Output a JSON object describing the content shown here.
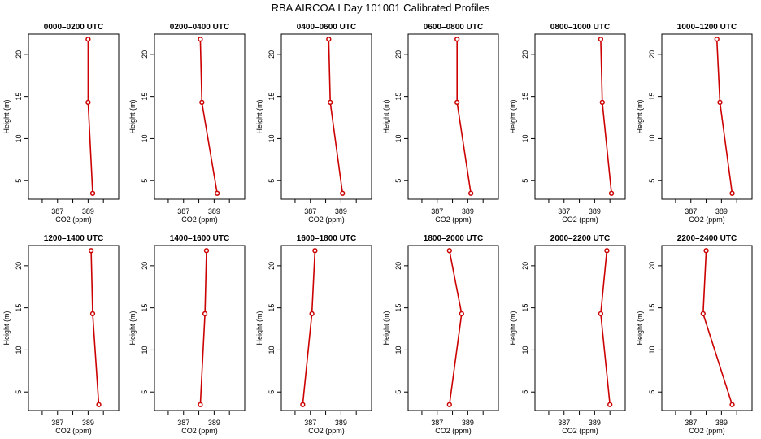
{
  "title": "RBA AIRCOA I  Day 101001  Calibrated Profiles",
  "chart_data": [
    {
      "type": "line",
      "title": "0000–0200 UTC",
      "xlabel": "CO2 (ppm)",
      "ylabel": "Height (m)",
      "xticks": [
        "387",
        "389"
      ],
      "yticks": [
        "5",
        "10",
        "15",
        "20"
      ],
      "x": [
        389.3,
        389.0,
        389.0
      ],
      "y": [
        3.5,
        14.3,
        21.8
      ]
    },
    {
      "type": "line",
      "title": "0200–0400 UTC",
      "xlabel": "CO2 (ppm)",
      "ylabel": "Height (m)",
      "xticks": [
        "387",
        "389"
      ],
      "yticks": [
        "5",
        "10",
        "15",
        "20"
      ],
      "x": [
        389.2,
        388.2,
        388.1
      ],
      "y": [
        3.5,
        14.3,
        21.8
      ]
    },
    {
      "type": "line",
      "title": "0400–0600 UTC",
      "xlabel": "CO2 (ppm)",
      "ylabel": "Height (m)",
      "xticks": [
        "387",
        "389"
      ],
      "yticks": [
        "5",
        "10",
        "15",
        "20"
      ],
      "x": [
        389.1,
        388.3,
        388.2
      ],
      "y": [
        3.5,
        14.3,
        21.8
      ]
    },
    {
      "type": "line",
      "title": "0600–0800 UTC",
      "xlabel": "CO2 (ppm)",
      "ylabel": "Height (m)",
      "xticks": [
        "387",
        "389"
      ],
      "yticks": [
        "5",
        "10",
        "15",
        "20"
      ],
      "x": [
        389.2,
        388.3,
        388.3
      ],
      "y": [
        3.5,
        14.3,
        21.8
      ]
    },
    {
      "type": "line",
      "title": "0800–1000 UTC",
      "xlabel": "CO2 (ppm)",
      "ylabel": "Height (m)",
      "xticks": [
        "387",
        "389"
      ],
      "yticks": [
        "5",
        "10",
        "15",
        "20"
      ],
      "x": [
        390.1,
        389.5,
        389.4
      ],
      "y": [
        3.5,
        14.3,
        21.8
      ]
    },
    {
      "type": "line",
      "title": "1000–1200 UTC",
      "xlabel": "CO2 (ppm)",
      "ylabel": "Height (m)",
      "xticks": [
        "387",
        "389"
      ],
      "yticks": [
        "5",
        "10",
        "15",
        "20"
      ],
      "x": [
        389.7,
        388.9,
        388.7
      ],
      "y": [
        3.5,
        14.3,
        21.8
      ]
    },
    {
      "type": "line",
      "title": "1200–1400 UTC",
      "xlabel": "CO2 (ppm)",
      "ylabel": "Height (m)",
      "xticks": [
        "387",
        "389"
      ],
      "yticks": [
        "5",
        "10",
        "15",
        "20"
      ],
      "x": [
        389.7,
        389.3,
        389.2
      ],
      "y": [
        3.5,
        14.3,
        21.8
      ]
    },
    {
      "type": "line",
      "title": "1400–1600 UTC",
      "xlabel": "CO2 (ppm)",
      "ylabel": "Height (m)",
      "xticks": [
        "387",
        "389"
      ],
      "yticks": [
        "5",
        "10",
        "15",
        "20"
      ],
      "x": [
        388.1,
        388.4,
        388.5
      ],
      "y": [
        3.5,
        14.3,
        21.8
      ]
    },
    {
      "type": "line",
      "title": "1600–1800 UTC",
      "xlabel": "CO2 (ppm)",
      "ylabel": "Height (m)",
      "xticks": [
        "387",
        "389"
      ],
      "yticks": [
        "5",
        "10",
        "15",
        "20"
      ],
      "x": [
        386.5,
        387.1,
        387.3
      ],
      "y": [
        3.5,
        14.3,
        21.8
      ]
    },
    {
      "type": "line",
      "title": "1800–2000 UTC",
      "xlabel": "CO2 (ppm)",
      "ylabel": "Height (m)",
      "xticks": [
        "387",
        "389"
      ],
      "yticks": [
        "5",
        "10",
        "15",
        "20"
      ],
      "x": [
        387.8,
        388.6,
        387.8
      ],
      "y": [
        3.5,
        14.3,
        21.8
      ]
    },
    {
      "type": "line",
      "title": "2000–2200 UTC",
      "xlabel": "CO2 (ppm)",
      "ylabel": "Height (m)",
      "xticks": [
        "387",
        "389"
      ],
      "yticks": [
        "5",
        "10",
        "15",
        "20"
      ],
      "x": [
        390.0,
        389.4,
        389.8
      ],
      "y": [
        3.5,
        14.3,
        21.8
      ]
    },
    {
      "type": "line",
      "title": "2200–2400 UTC",
      "xlabel": "CO2 (ppm)",
      "ylabel": "Height (m)",
      "xticks": [
        "387",
        "389"
      ],
      "yticks": [
        "5",
        "10",
        "15",
        "20"
      ],
      "x": [
        389.7,
        387.8,
        388.0
      ],
      "y": [
        3.5,
        14.3,
        21.8
      ]
    }
  ],
  "colors": {
    "line": "#cc0000",
    "axis": "#000000"
  }
}
